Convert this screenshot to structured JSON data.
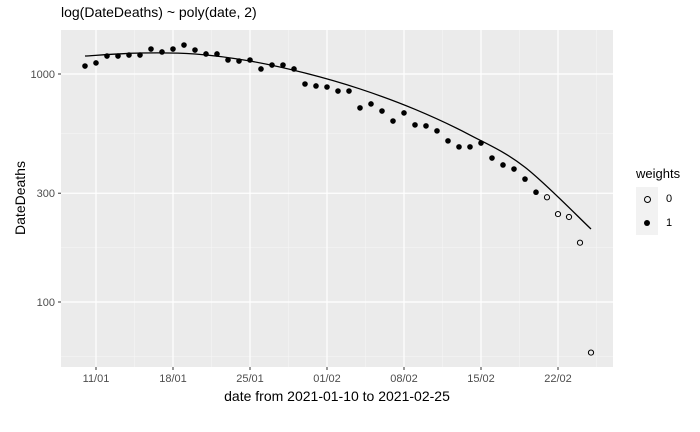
{
  "chart_data": {
    "type": "scatter",
    "title": "log(DateDeaths) ~ poly(date, 2)",
    "xlabel": "date from 2021-01-10 to 2021-02-25",
    "ylabel": "DateDeaths",
    "y_scale": "log10",
    "ylim": [
      55,
      1600
    ],
    "xlim": [
      "2021-01-08",
      "2021-02-27"
    ],
    "x_ticks": [
      "11/01",
      "18/01",
      "25/01",
      "01/02",
      "08/02",
      "15/02",
      "22/02"
    ],
    "y_ticks": [
      100,
      300,
      1000
    ],
    "grid": true,
    "legend": {
      "title": "weights",
      "position": "right",
      "entries": [
        {
          "label": "0",
          "marker": "open-circle"
        },
        {
          "label": "1",
          "marker": "filled-circle"
        }
      ]
    },
    "series": [
      {
        "name": "weights=1",
        "marker": "filled-circle",
        "x": [
          "2021-01-10",
          "2021-01-11",
          "2021-01-12",
          "2021-01-13",
          "2021-01-14",
          "2021-01-15",
          "2021-01-16",
          "2021-01-17",
          "2021-01-18",
          "2021-01-19",
          "2021-01-20",
          "2021-01-21",
          "2021-01-22",
          "2021-01-23",
          "2021-01-24",
          "2021-01-25",
          "2021-01-26",
          "2021-01-27",
          "2021-01-28",
          "2021-01-29",
          "2021-01-30",
          "2021-01-31",
          "2021-02-01",
          "2021-02-02",
          "2021-02-03",
          "2021-02-04",
          "2021-02-05",
          "2021-02-06",
          "2021-02-07",
          "2021-02-08",
          "2021-02-09",
          "2021-02-10",
          "2021-02-11",
          "2021-02-12",
          "2021-02-13",
          "2021-02-14",
          "2021-02-15",
          "2021-02-16",
          "2021-02-17",
          "2021-02-18",
          "2021-02-19",
          "2021-02-20"
        ],
        "values": [
          1084,
          1118,
          1199,
          1199,
          1211,
          1211,
          1287,
          1249,
          1287,
          1340,
          1274,
          1224,
          1224,
          1152,
          1140,
          1152,
          1052,
          1095,
          1095,
          1052,
          904,
          886,
          877,
          842,
          842,
          710,
          739,
          688,
          622,
          675,
          598,
          592,
          563,
          509,
          479,
          479,
          498,
          428,
          399,
          383,
          346,
          303
        ]
      },
      {
        "name": "weights=0",
        "marker": "open-circle",
        "x": [
          "2021-02-21",
          "2021-02-22",
          "2021-02-23",
          "2021-02-24",
          "2021-02-25"
        ],
        "values": [
          288,
          243,
          236,
          182,
          60
        ]
      },
      {
        "name": "fit: poly(date, 2)",
        "type": "line",
        "x": [
          "2021-01-10",
          "2021-01-15",
          "2021-01-20",
          "2021-01-25",
          "2021-01-30",
          "2021-02-04",
          "2021-02-09",
          "2021-02-14",
          "2021-02-19",
          "2021-02-25"
        ],
        "values": [
          1199,
          1236,
          1224,
          1140,
          1010,
          860,
          700,
          540,
          390,
          209
        ]
      }
    ]
  }
}
